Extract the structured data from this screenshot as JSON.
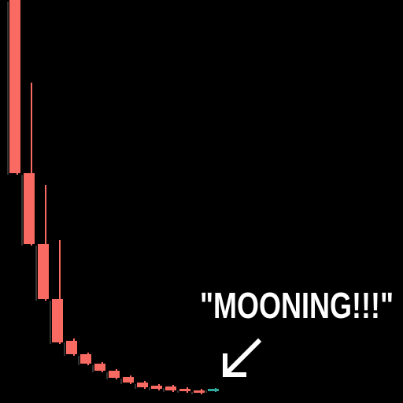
{
  "chart_data": {
    "type": "candlestick",
    "annotation": "\"MOONING!!!\"",
    "categories": [
      null,
      null,
      null,
      null,
      null,
      null,
      null,
      null,
      null,
      null,
      null,
      null,
      null,
      null,
      null
    ],
    "open": [
      512,
      292,
      202,
      132,
      79,
      62,
      50,
      41,
      33,
      26,
      22,
      21,
      18,
      16,
      15
    ],
    "high": [
      512,
      407,
      277,
      207,
      82,
      64,
      52,
      43,
      35,
      28,
      24,
      23,
      20,
      18,
      19
    ],
    "low": [
      290,
      200,
      130,
      75,
      60,
      48,
      39,
      30,
      24,
      18,
      16,
      14,
      13,
      11,
      14
    ],
    "close": [
      292,
      202,
      132,
      77,
      62,
      50,
      41,
      32,
      26,
      20,
      18,
      16,
      15,
      13,
      18
    ],
    "up_color": "#2fa79b",
    "down_color": "#f96a62",
    "ylim": [
      0,
      512
    ]
  }
}
